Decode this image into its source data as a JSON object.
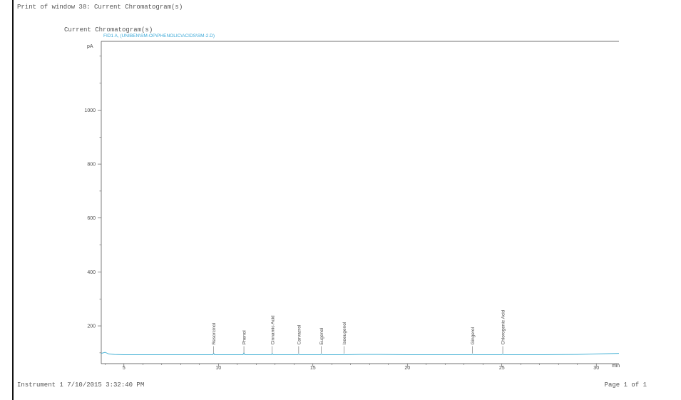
{
  "page": {
    "header": "Print of window 38: Current Chromatogram(s)",
    "section_title": "Current Chromatogram(s)",
    "footer_left": "Instrument 1 7/10/2015 3:32:40 PM",
    "footer_right": "Page 1 of 1"
  },
  "colors": {
    "trace": "#4ab3d6",
    "axis": "#444444",
    "label": "#4a4a4a",
    "signal_title": "#3aa8d8"
  },
  "chart_data": {
    "type": "line",
    "title": "",
    "signal_label": "FID1 A, (UNIBEN\\SM-OP\\PHENOLIC\\ACIDS\\SM-2.D)",
    "ylabel": "pA",
    "xlabel": "min",
    "xlim": [
      3.8,
      31.2
    ],
    "ylim": [
      60,
      1255
    ],
    "yticks": [
      200,
      400,
      600,
      800,
      1000
    ],
    "xticks": [
      5,
      10,
      15,
      20,
      25,
      30
    ],
    "series": [
      {
        "x": [
          3.8,
          4.0,
          4.2,
          4.5,
          5.0,
          6.0,
          8.0,
          9.7,
          9.75,
          9.8,
          11.3,
          11.35,
          11.4,
          12.8,
          12.85,
          12.9,
          14.2,
          14.25,
          14.3,
          15.4,
          15.45,
          15.5,
          16.6,
          16.65,
          16.7,
          17.5,
          18.5,
          20.0,
          22.0,
          23.4,
          23.45,
          23.5,
          25.0,
          25.05,
          25.1,
          27.0,
          29.0,
          30.0,
          31.2
        ],
        "y": [
          98,
          102,
          96,
          94,
          93,
          93,
          93,
          93,
          98,
          93,
          93,
          99,
          93,
          93,
          97,
          93,
          93,
          96,
          93,
          93,
          96,
          93,
          93,
          95,
          93,
          94,
          94,
          93,
          93,
          93,
          95,
          93,
          93,
          96,
          93,
          93,
          94,
          96,
          98
        ]
      }
    ],
    "peaks": [
      {
        "name": "Resorcinol",
        "x": 9.75
      },
      {
        "name": "Phenol",
        "x": 11.35
      },
      {
        "name": "Cinnamic Acid",
        "x": 12.85
      },
      {
        "name": "Carvacrol",
        "x": 14.25
      },
      {
        "name": "Eugenol",
        "x": 15.45
      },
      {
        "name": "Isoeugenol",
        "x": 16.65
      },
      {
        "name": "Gingerol",
        "x": 23.45
      },
      {
        "name": "Chlorogenic Acid",
        "x": 25.05
      }
    ]
  }
}
